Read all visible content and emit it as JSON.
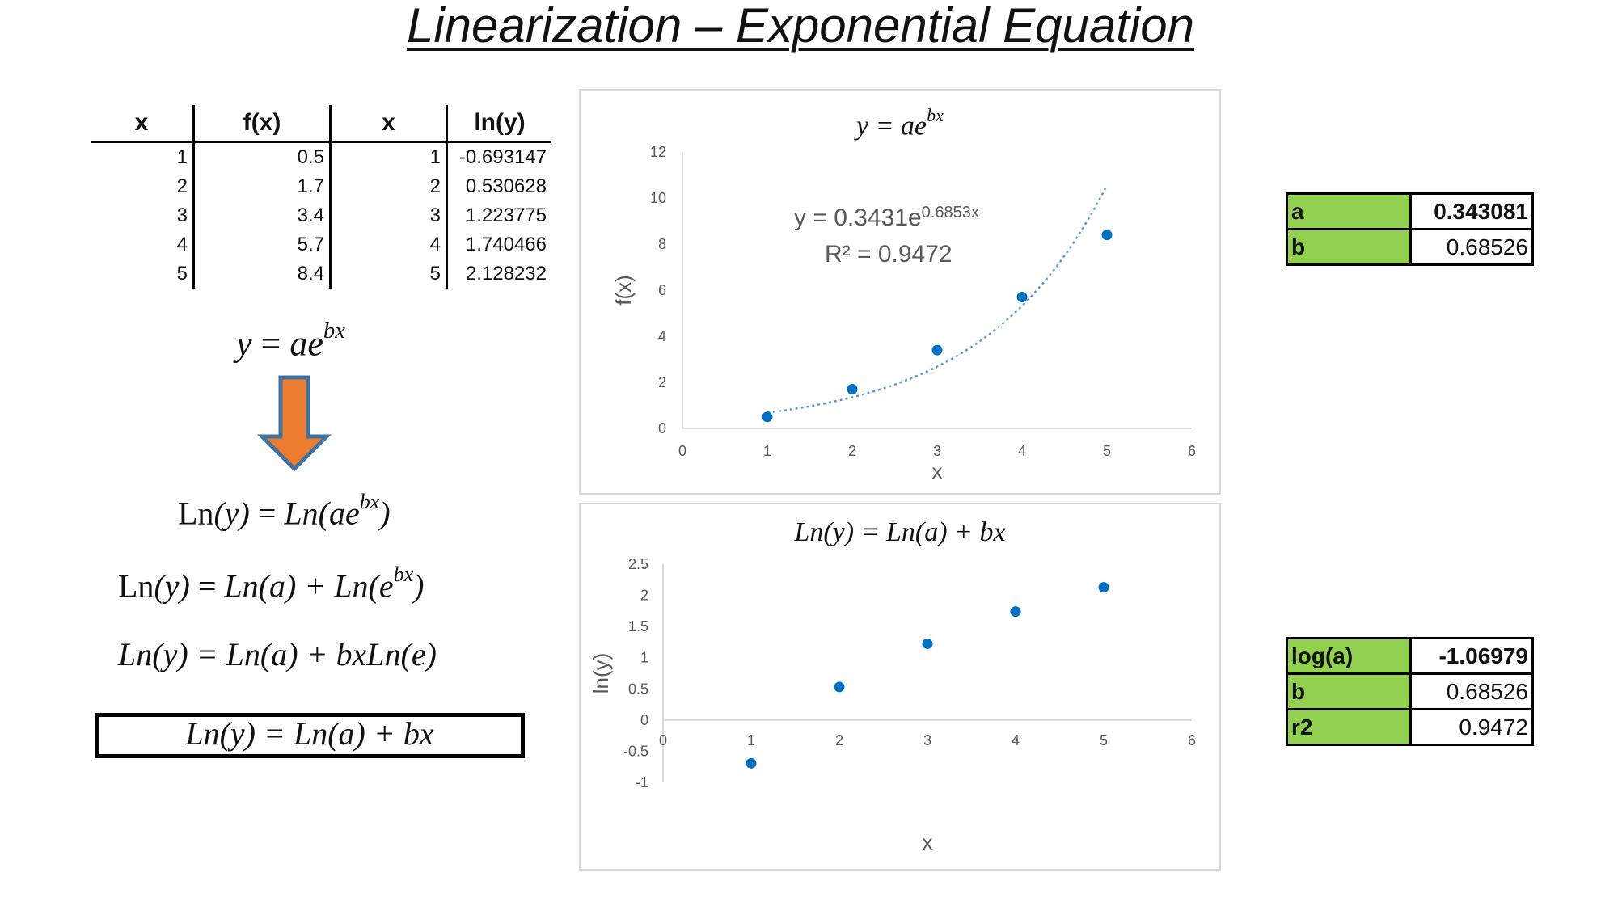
{
  "title": "Linearization – Exponential Equation",
  "table": {
    "headers": [
      "x",
      "f(x)",
      "x",
      "ln(y)"
    ],
    "rows": [
      [
        "1",
        "0.5",
        "1",
        "-0.693147"
      ],
      [
        "2",
        "1.7",
        "2",
        "0.530628"
      ],
      [
        "3",
        "3.4",
        "3",
        "1.223775"
      ],
      [
        "4",
        "5.7",
        "4",
        "1.740466"
      ],
      [
        "5",
        "8.4",
        "5",
        "2.128232"
      ]
    ]
  },
  "equations": {
    "original": {
      "lhs": "y",
      "eq": " = ",
      "base": "ae",
      "exp": "bx"
    },
    "step1": {
      "fn": "Ln",
      "arg": "(y)",
      "eq": " = ",
      "rhs": "Ln(ae",
      "exp": "bx",
      "close": ")"
    },
    "step2": {
      "fn": "Ln",
      "arg": "(y)",
      "eq": " = ",
      "rhs": "Ln(a) + Ln(e",
      "exp": "bx",
      "close": ")"
    },
    "step3": {
      "text": "Ln(y) = Ln(a) + bxLn(e)"
    },
    "final": {
      "text": "Ln(y) = Ln(a) + bx"
    }
  },
  "colors": {
    "arrow_fill": "#ed7d31",
    "arrow_stroke": "#41719c",
    "marker": "#0070c0",
    "trendline": "#5b9bd5",
    "axis": "#d9d9d9",
    "tick_text": "#595959",
    "table_key_bg": "#92d050"
  },
  "chart_data": [
    {
      "type": "scatter",
      "title_base": "y = ae",
      "title_exp": "bx",
      "xlabel": "x",
      "ylabel": "f(x)",
      "xlim": [
        0,
        6
      ],
      "ylim": [
        0,
        12
      ],
      "xticks": [
        0,
        1,
        2,
        3,
        4,
        5,
        6
      ],
      "yticks": [
        0,
        2,
        4,
        6,
        8,
        10,
        12
      ],
      "x": [
        1,
        2,
        3,
        4,
        5
      ],
      "y": [
        0.5,
        1.7,
        3.4,
        5.7,
        8.4
      ],
      "trendline": {
        "type": "exponential",
        "a": 0.3431,
        "b": 0.6853,
        "x_range": [
          1,
          5
        ]
      },
      "annotation": {
        "eq_base": "y = 0.3431e",
        "eq_exp": "0.6853x",
        "r2": "R² = 0.9472"
      },
      "grid": false,
      "legend": "none"
    },
    {
      "type": "scatter",
      "title": "Ln(y) = Ln(a) + bx",
      "xlabel": "x",
      "ylabel": "ln(y)",
      "xlim": [
        0,
        6
      ],
      "ylim": [
        -1,
        2.5
      ],
      "xticks": [
        0,
        1,
        2,
        3,
        4,
        5,
        6
      ],
      "yticks": [
        2.5,
        2,
        1.5,
        1,
        0.5,
        0,
        -0.5,
        -1
      ],
      "x": [
        1,
        2,
        3,
        4,
        5
      ],
      "y": [
        -0.693147,
        0.530628,
        1.223775,
        1.740466,
        2.128232
      ],
      "grid": false,
      "legend": "none"
    }
  ],
  "result_tables": [
    {
      "rows": [
        {
          "key": "a",
          "value": "0.343081",
          "bold": true
        },
        {
          "key": "b",
          "value": "0.68526",
          "bold": false
        }
      ]
    },
    {
      "rows": [
        {
          "key": "log(a)",
          "value": "-1.06979",
          "bold": true
        },
        {
          "key": "b",
          "value": "0.68526",
          "bold": false
        },
        {
          "key": "r2",
          "value": "0.9472",
          "bold": false
        }
      ]
    }
  ]
}
